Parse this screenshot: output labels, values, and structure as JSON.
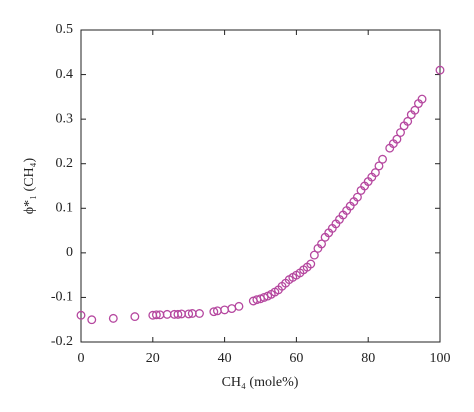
{
  "chart_data": {
    "type": "scatter",
    "x_label": "CH₄ (mole%)",
    "y_label": "ϕ*₁ (CH₄)",
    "xlim": [
      0,
      100
    ],
    "ylim": [
      -0.2,
      0.5
    ],
    "xticks": [
      0,
      20,
      40,
      60,
      80,
      100
    ],
    "yticks": [
      -0.2,
      -0.1,
      0,
      0.1,
      0.2,
      0.3,
      0.4,
      0.5
    ],
    "color": "#b5479f",
    "x": [
      0,
      3,
      9,
      15,
      20,
      21,
      22,
      24,
      26,
      27,
      28,
      30,
      31,
      33,
      37,
      38,
      40,
      42,
      44,
      48,
      49,
      50,
      51,
      52,
      53,
      54,
      55,
      56,
      57,
      58,
      59,
      60,
      61,
      62,
      63,
      64,
      65,
      66,
      67,
      68,
      69,
      70,
      71,
      72,
      73,
      74,
      75,
      76,
      77,
      78,
      79,
      80,
      81,
      82,
      83,
      84,
      86,
      87,
      88,
      89,
      90,
      91,
      92,
      93,
      94,
      95,
      100
    ],
    "values": [
      -0.14,
      -0.15,
      -0.147,
      -0.143,
      -0.14,
      -0.139,
      -0.139,
      -0.138,
      -0.138,
      -0.138,
      -0.137,
      -0.137,
      -0.136,
      -0.136,
      -0.132,
      -0.13,
      -0.128,
      -0.125,
      -0.12,
      -0.108,
      -0.105,
      -0.103,
      -0.1,
      -0.097,
      -0.093,
      -0.088,
      -0.083,
      -0.075,
      -0.068,
      -0.06,
      -0.055,
      -0.05,
      -0.045,
      -0.038,
      -0.032,
      -0.025,
      -0.005,
      0.01,
      0.02,
      0.035,
      0.045,
      0.055,
      0.065,
      0.075,
      0.085,
      0.095,
      0.105,
      0.115,
      0.125,
      0.14,
      0.15,
      0.16,
      0.17,
      0.18,
      0.195,
      0.21,
      0.235,
      0.245,
      0.255,
      0.27,
      0.285,
      0.295,
      0.31,
      0.32,
      0.335,
      0.345,
      0.41
    ]
  }
}
